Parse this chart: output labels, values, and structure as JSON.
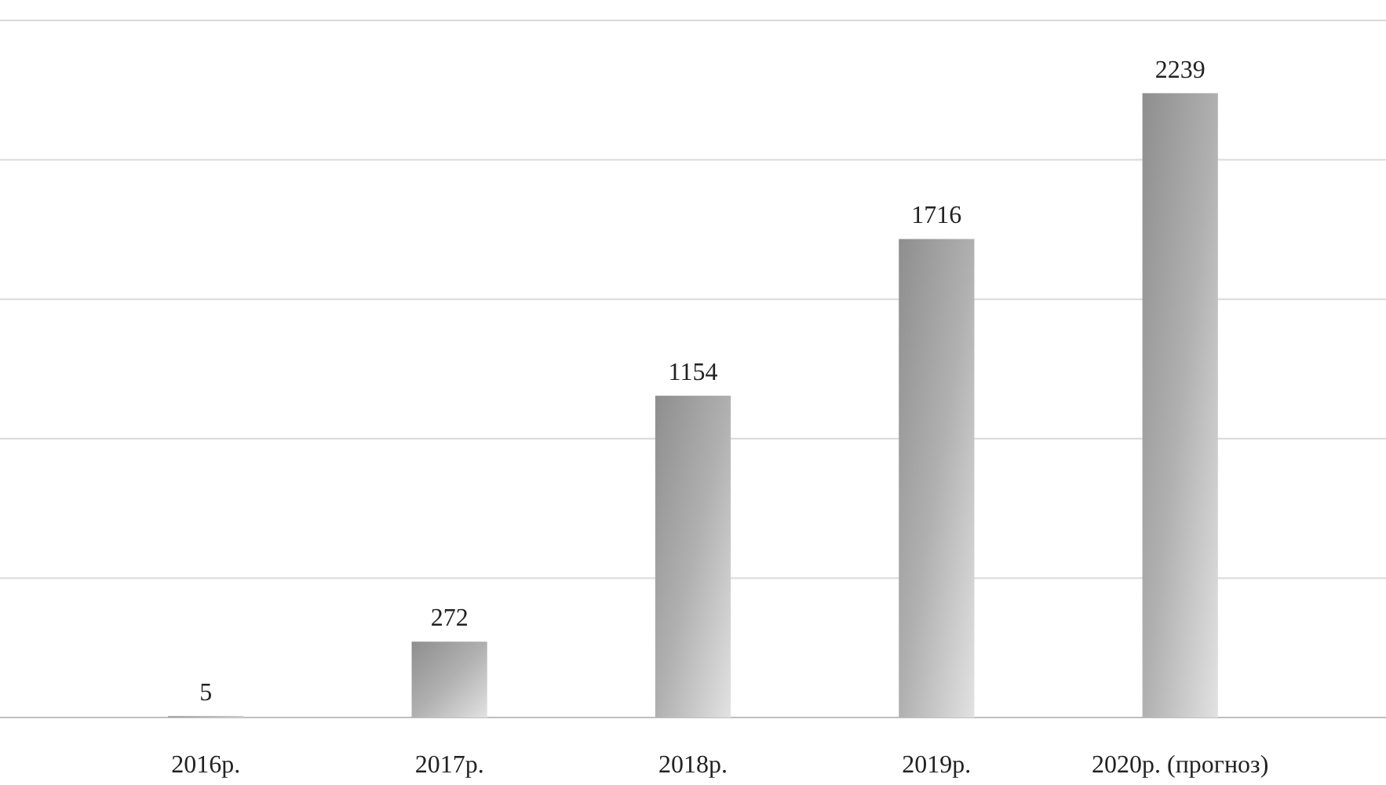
{
  "chart_data": {
    "type": "bar",
    "categories": [
      "2016р.",
      "2017р.",
      "2018р.",
      "2019р.",
      "2020р. (прогноз)"
    ],
    "values": [
      5,
      272,
      1154,
      1716,
      2239
    ],
    "color": "#b0b0b0",
    "ylim": [
      0,
      2500
    ],
    "yticks": [
      {
        "value": 0,
        "label": null
      },
      {
        "value": 500,
        "label": null
      },
      {
        "value": 1000,
        "label": null
      },
      {
        "value": 1500,
        "label": null
      },
      {
        "value": 2000,
        "label": null
      },
      {
        "value": 2500,
        "label": null
      }
    ],
    "grid": true,
    "data_labels": true,
    "tick_labels": "x"
  }
}
